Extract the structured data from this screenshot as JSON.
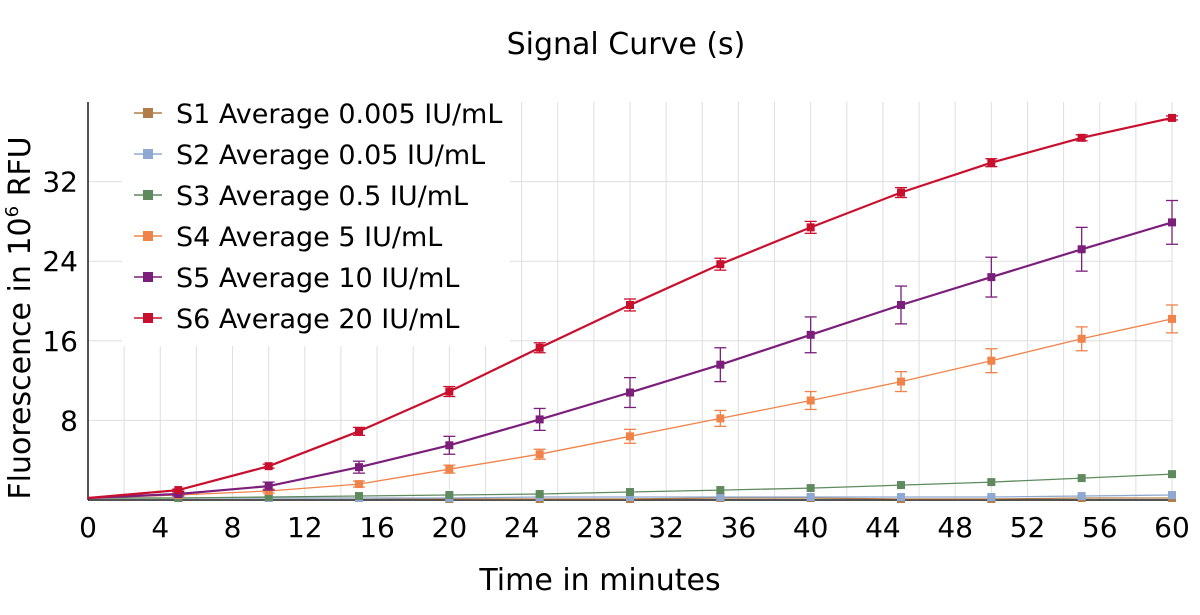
{
  "chart_data": {
    "type": "line",
    "title": "Signal Curve (s)",
    "xlabel": "Time in minutes",
    "ylabel_prefix": "Fluorescence in 10",
    "ylabel_sup": "6",
    "ylabel_suffix": " RFU",
    "xlim": [
      0,
      60
    ],
    "ylim": [
      0,
      40
    ],
    "x_ticks": [
      "0",
      "4",
      "8",
      "12",
      "16",
      "20",
      "24",
      "28",
      "32",
      "36",
      "40",
      "44",
      "48",
      "52",
      "56",
      "60"
    ],
    "x_tick_values": [
      0,
      4,
      8,
      12,
      16,
      20,
      24,
      28,
      32,
      36,
      40,
      44,
      48,
      52,
      56,
      60
    ],
    "y_ticks": [
      "8",
      "16",
      "24",
      "32"
    ],
    "y_tick_values": [
      8,
      16,
      24,
      32
    ],
    "grid": true,
    "legend_placement": "top-left",
    "series": [
      {
        "name": "S1 Average 0.005 IU/mL",
        "color": "#b07d4a",
        "x": [
          0,
          5,
          10,
          15,
          20,
          25,
          30,
          35,
          40,
          45,
          50,
          55,
          60
        ],
        "y": [
          0.2,
          0.2,
          0.2,
          0.2,
          0.1,
          0.1,
          0.1,
          0.2,
          0.2,
          0.1,
          0.1,
          0.2,
          0.2
        ],
        "err": [
          0,
          0,
          0,
          0,
          0,
          0,
          0,
          0,
          0,
          0,
          0,
          0,
          0
        ]
      },
      {
        "name": "S2 Average 0.05 IU/mL",
        "color": "#8fa8d1",
        "x": [
          0,
          5,
          10,
          15,
          20,
          25,
          30,
          35,
          40,
          45,
          50,
          55,
          60
        ],
        "y": [
          0.2,
          0.2,
          0.2,
          0.2,
          0.2,
          0.3,
          0.3,
          0.3,
          0.3,
          0.3,
          0.3,
          0.4,
          0.5
        ],
        "err": [
          0,
          0,
          0,
          0,
          0,
          0,
          0,
          0,
          0,
          0,
          0,
          0,
          0
        ]
      },
      {
        "name": "S3 Average 0.5 IU/mL",
        "color": "#5e8a5e",
        "x": [
          0,
          5,
          10,
          15,
          20,
          25,
          30,
          35,
          40,
          45,
          50,
          55,
          60
        ],
        "y": [
          0.2,
          0.2,
          0.3,
          0.4,
          0.5,
          0.6,
          0.8,
          1.0,
          1.2,
          1.5,
          1.8,
          2.2,
          2.6
        ],
        "err": [
          0,
          0,
          0,
          0,
          0,
          0,
          0,
          0,
          0,
          0,
          0,
          0,
          0
        ]
      },
      {
        "name": "S4 Average 5 IU/mL",
        "color": "#f0834a",
        "x": [
          0,
          5,
          10,
          15,
          20,
          25,
          30,
          35,
          40,
          45,
          50,
          55,
          60
        ],
        "y": [
          0.2,
          0.5,
          0.9,
          1.6,
          3.1,
          4.6,
          6.4,
          8.2,
          10.0,
          11.9,
          14.0,
          16.2,
          18.2
        ],
        "err": [
          0,
          0.1,
          0.2,
          0.3,
          0.4,
          0.5,
          0.7,
          0.8,
          0.9,
          1.0,
          1.2,
          1.2,
          1.4
        ]
      },
      {
        "name": "S5 Average 10 IU/mL",
        "color": "#7b1f7b",
        "x": [
          0,
          5,
          10,
          15,
          20,
          25,
          30,
          35,
          40,
          45,
          50,
          55,
          60
        ],
        "y": [
          0.2,
          0.6,
          1.4,
          3.3,
          5.5,
          8.1,
          10.8,
          13.6,
          16.6,
          19.6,
          22.4,
          25.2,
          27.9
        ],
        "err": [
          0,
          0.2,
          0.4,
          0.6,
          0.9,
          1.1,
          1.5,
          1.7,
          1.8,
          1.9,
          2.0,
          2.2,
          2.2
        ]
      },
      {
        "name": "S6 Average 20 IU/mL",
        "color": "#c8102e",
        "x": [
          0,
          5,
          10,
          15,
          20,
          25,
          30,
          35,
          40,
          45,
          50,
          55,
          60
        ],
        "y": [
          0.2,
          1.0,
          3.4,
          6.9,
          10.9,
          15.3,
          19.6,
          23.7,
          27.4,
          30.9,
          33.9,
          36.4,
          38.4
        ],
        "err": [
          0,
          0.1,
          0.2,
          0.4,
          0.5,
          0.5,
          0.6,
          0.6,
          0.6,
          0.5,
          0.4,
          0.3,
          0.2
        ]
      }
    ]
  }
}
